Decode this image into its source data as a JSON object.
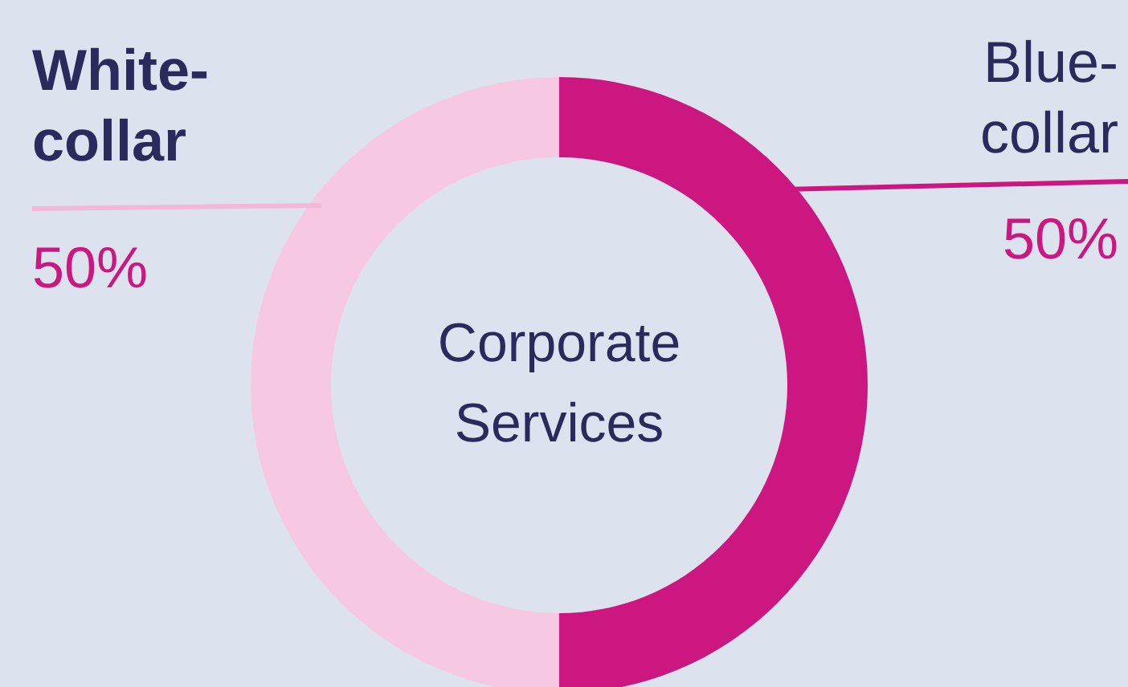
{
  "chart_data": {
    "type": "donut",
    "title": "Corporate Services",
    "categories": [
      "Blue-collar",
      "White-collar"
    ],
    "values": [
      50,
      50
    ],
    "colors": [
      "#cc1680",
      "#f7c8e4"
    ],
    "value_labels": [
      "50%",
      "50%"
    ]
  }
}
